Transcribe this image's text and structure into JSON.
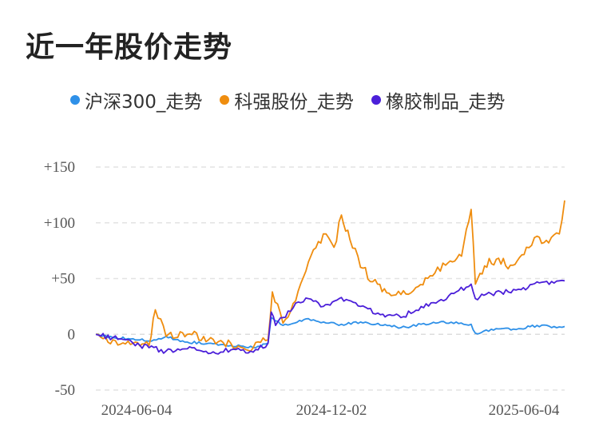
{
  "title": "近一年股价走势",
  "colors": {
    "grid": "#e3e3e3",
    "zero_line": "#dddddd",
    "axis_text": "#555555"
  },
  "chart_data": {
    "type": "line",
    "title": "近一年股价走势",
    "xlabel": "",
    "ylabel": "",
    "ylim": [
      -50,
      150
    ],
    "yticks": [
      150,
      100,
      50,
      0,
      -50
    ],
    "ytick_labels": [
      "+150",
      "+100",
      "+50",
      "0",
      "-50"
    ],
    "xlim": [
      "2024-04-15",
      "2025-06-30"
    ],
    "xtick_labels": [
      "2024-06-04",
      "2024-12-02",
      "2025-06-04"
    ],
    "grid": "horizontal dashed",
    "legend_position": "top",
    "series": [
      {
        "name": "沪深300_走势",
        "color": "#2e90e8",
        "x": [
          "2024-04-15",
          "2024-05-01",
          "2024-05-20",
          "2024-06-04",
          "2024-06-20",
          "2024-07-10",
          "2024-08-01",
          "2024-08-20",
          "2024-09-10",
          "2024-09-24",
          "2024-09-27",
          "2024-10-01",
          "2024-10-08",
          "2024-10-15",
          "2024-11-01",
          "2024-11-20",
          "2024-12-02",
          "2024-12-20",
          "2025-01-10",
          "2025-01-27",
          "2025-02-15",
          "2025-03-01",
          "2025-03-20",
          "2025-04-03",
          "2025-04-07",
          "2025-04-15",
          "2025-05-01",
          "2025-05-20",
          "2025-06-04",
          "2025-06-20",
          "2025-06-30"
        ],
        "values": [
          0,
          -3,
          -4,
          -6,
          -2,
          -7,
          -8,
          -10,
          -12,
          -8,
          15,
          12,
          8,
          9,
          14,
          10,
          9,
          11,
          8,
          6,
          9,
          10,
          11,
          9,
          1,
          3,
          5,
          5,
          8,
          7,
          7
        ]
      },
      {
        "name": "科强股份_走势",
        "color": "#ef8d0f",
        "x": [
          "2024-04-15",
          "2024-05-01",
          "2024-05-20",
          "2024-06-04",
          "2024-06-10",
          "2024-06-20",
          "2024-07-10",
          "2024-08-01",
          "2024-08-20",
          "2024-09-10",
          "2024-09-24",
          "2024-09-28",
          "2024-10-08",
          "2024-10-20",
          "2024-11-01",
          "2024-11-15",
          "2024-11-25",
          "2024-12-02",
          "2024-12-10",
          "2024-12-20",
          "2025-01-05",
          "2025-01-20",
          "2025-02-10",
          "2025-02-28",
          "2025-03-10",
          "2025-03-25",
          "2025-04-03",
          "2025-04-07",
          "2025-04-20",
          "2025-05-10",
          "2025-05-25",
          "2025-06-04",
          "2025-06-15",
          "2025-06-25",
          "2025-06-30"
        ],
        "values": [
          0,
          -5,
          -8,
          -10,
          22,
          -2,
          0,
          -3,
          -8,
          -12,
          -5,
          38,
          10,
          30,
          65,
          90,
          78,
          107,
          85,
          60,
          45,
          35,
          42,
          55,
          62,
          70,
          112,
          45,
          68,
          62,
          78,
          88,
          82,
          90,
          120
        ]
      },
      {
        "name": "橡胶制品_走势",
        "color": "#4b1fd9",
        "x": [
          "2024-04-15",
          "2024-05-01",
          "2024-05-20",
          "2024-06-04",
          "2024-06-20",
          "2024-07-10",
          "2024-08-01",
          "2024-08-20",
          "2024-09-10",
          "2024-09-24",
          "2024-09-27",
          "2024-10-01",
          "2024-10-08",
          "2024-10-20",
          "2024-11-01",
          "2024-11-15",
          "2024-12-02",
          "2024-12-20",
          "2025-01-10",
          "2025-01-27",
          "2025-02-15",
          "2025-03-01",
          "2025-03-20",
          "2025-04-03",
          "2025-04-07",
          "2025-04-15",
          "2025-05-01",
          "2025-05-20",
          "2025-06-04",
          "2025-06-20",
          "2025-06-30"
        ],
        "values": [
          0,
          -3,
          -8,
          -12,
          -15,
          -13,
          -17,
          -14,
          -16,
          -8,
          20,
          8,
          15,
          28,
          32,
          25,
          33,
          25,
          18,
          15,
          25,
          28,
          38,
          45,
          32,
          35,
          38,
          40,
          47,
          46,
          48
        ]
      }
    ]
  }
}
